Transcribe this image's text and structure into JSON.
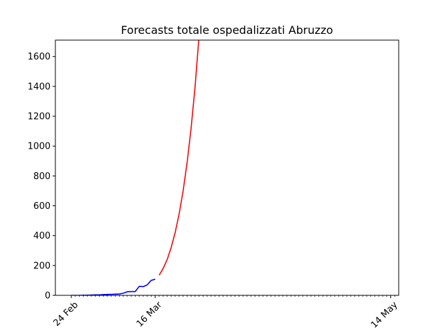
{
  "chart_data": {
    "type": "line",
    "title": "Forecasts totale ospedalizzati Abruzzo",
    "xlabel": "",
    "ylabel": "",
    "x_axis": {
      "kind": "date",
      "start": "2020-02-20",
      "end": "2020-05-16",
      "major_ticks": [
        {
          "date": "2020-02-24",
          "label": "24 Feb"
        },
        {
          "date": "2020-03-16",
          "label": "16 Mar"
        },
        {
          "date": "2020-05-14",
          "label": "14 May"
        }
      ],
      "minor_ticks": "daily"
    },
    "ylim": [
      0,
      1710
    ],
    "y_ticks": [
      0,
      200,
      400,
      600,
      800,
      1000,
      1200,
      1400,
      1600
    ],
    "grid": false,
    "legend": "none",
    "series": [
      {
        "color": "#0000ff",
        "points": [
          {
            "x": "2020-02-24",
            "y": 0
          },
          {
            "x": "2020-02-25",
            "y": 0
          },
          {
            "x": "2020-02-26",
            "y": 0
          },
          {
            "x": "2020-02-27",
            "y": 1
          },
          {
            "x": "2020-02-28",
            "y": 1
          },
          {
            "x": "2020-02-29",
            "y": 2
          },
          {
            "x": "2020-03-01",
            "y": 3
          },
          {
            "x": "2020-03-02",
            "y": 3
          },
          {
            "x": "2020-03-03",
            "y": 5
          },
          {
            "x": "2020-03-04",
            "y": 6
          },
          {
            "x": "2020-03-05",
            "y": 7
          },
          {
            "x": "2020-03-06",
            "y": 8
          },
          {
            "x": "2020-03-07",
            "y": 9
          },
          {
            "x": "2020-03-08",
            "y": 14
          },
          {
            "x": "2020-03-09",
            "y": 24
          },
          {
            "x": "2020-03-10",
            "y": 25
          },
          {
            "x": "2020-03-11",
            "y": 25
          },
          {
            "x": "2020-03-12",
            "y": 60
          },
          {
            "x": "2020-03-13",
            "y": 58
          },
          {
            "x": "2020-03-14",
            "y": 70
          },
          {
            "x": "2020-03-15",
            "y": 100
          },
          {
            "x": "2020-03-16",
            "y": 108
          }
        ]
      },
      {
        "color": "#ff0000",
        "points": [
          {
            "x": "2020-03-17",
            "y": 135
          },
          {
            "x": "2020-03-18",
            "y": 180
          },
          {
            "x": "2020-03-19",
            "y": 240
          },
          {
            "x": "2020-03-20",
            "y": 320
          },
          {
            "x": "2020-03-21",
            "y": 420
          },
          {
            "x": "2020-03-22",
            "y": 545
          },
          {
            "x": "2020-03-23",
            "y": 700
          },
          {
            "x": "2020-03-24",
            "y": 890
          },
          {
            "x": "2020-03-25",
            "y": 1120
          },
          {
            "x": "2020-03-26",
            "y": 1400
          },
          {
            "x": "2020-03-27",
            "y": 1740
          }
        ]
      }
    ]
  }
}
